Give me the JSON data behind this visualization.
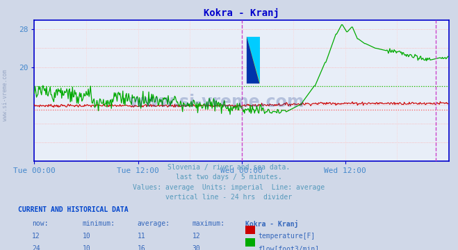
{
  "title": "Kokra - Kranj",
  "title_color": "#0000cc",
  "bg_color": "#d0d8e8",
  "plot_bg_color": "#e8eef8",
  "grid_color_h": "#ffaaaa",
  "grid_color_v": "#ffcccc",
  "xlabel_color": "#4488cc",
  "ylabel_color": "#4488cc",
  "axis_color": "#0000cc",
  "yticks": [
    20,
    28
  ],
  "ylim": [
    0,
    30
  ],
  "xlim": [
    0,
    576
  ],
  "n_points": 576,
  "temp_color": "#cc0000",
  "flow_color": "#00aa00",
  "avg_temp_color": "#ff5555",
  "avg_flow_color": "#00cc00",
  "divider_color": "#cc44cc",
  "end_vline_color": "#cc44cc",
  "subtitle_lines": [
    "Slovenia / river and sea data.",
    "last two days / 5 minutes.",
    "Values: average  Units: imperial  Line: average",
    "vertical line - 24 hrs  divider"
  ],
  "subtitle_color": "#5599bb",
  "current_and_hist_label": "CURRENT AND HISTORICAL DATA",
  "table_header": [
    "now:",
    "minimum:",
    "average:",
    "maximum:",
    "Kokra - Kranj"
  ],
  "table_temp": [
    "12",
    "10",
    "11",
    "12"
  ],
  "table_flow": [
    "24",
    "10",
    "16",
    "30"
  ],
  "temp_label": "temperature[F]",
  "flow_label": "flow[foot3/min]",
  "x_tick_labels": [
    "Tue 00:00",
    "Tue 12:00",
    "Wed 00:00",
    "Wed 12:00"
  ],
  "x_tick_positions": [
    0,
    144,
    288,
    432
  ],
  "divider_x": 288,
  "end_vline_x": 558,
  "temp_avg_y": 11,
  "flow_avg_y": 16,
  "watermark_color": "#1a3a8a"
}
